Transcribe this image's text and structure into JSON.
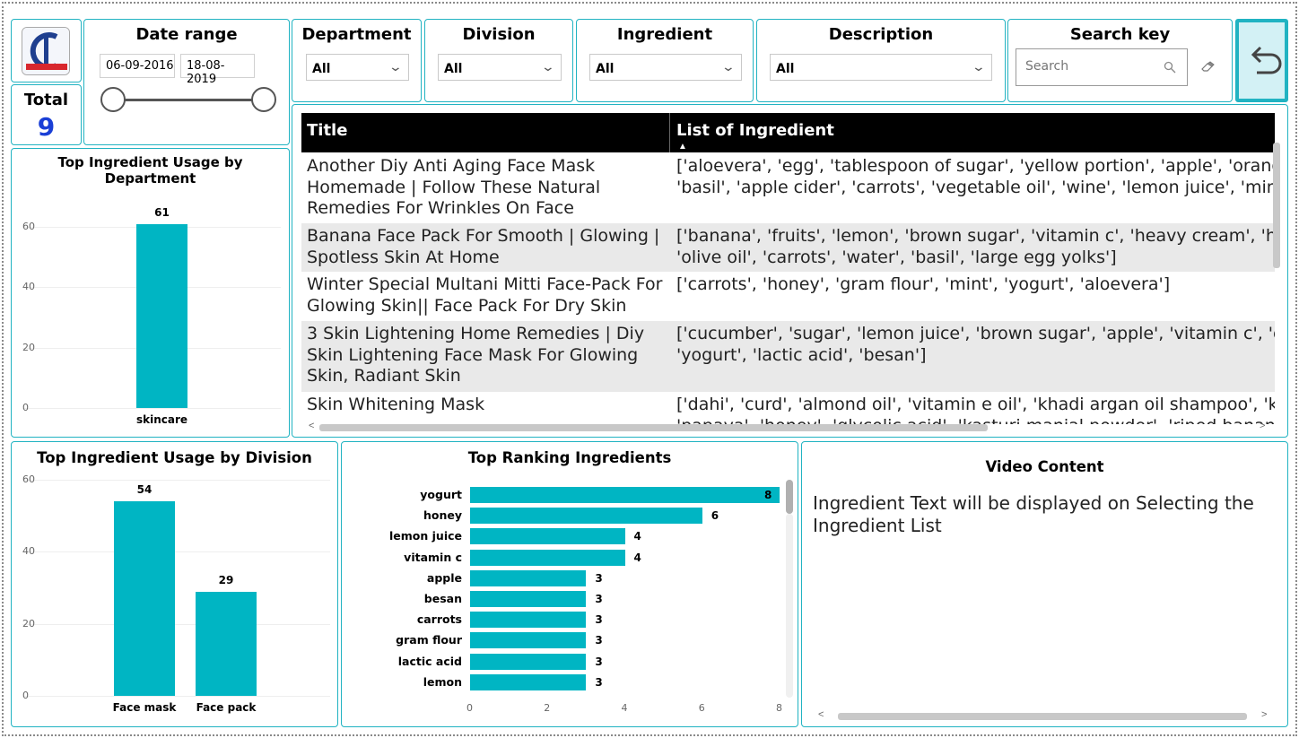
{
  "total": {
    "label": "Total",
    "value": "9"
  },
  "date_range": {
    "label": "Date range",
    "start": "06-09-2016",
    "end": "18-08-2019"
  },
  "filters": [
    {
      "label": "Department",
      "value": "All"
    },
    {
      "label": "Division",
      "value": "All"
    },
    {
      "label": "Ingredient",
      "value": "All"
    },
    {
      "label": "Description",
      "value": "All"
    }
  ],
  "search": {
    "label": "Search key",
    "placeholder": "Search"
  },
  "table": {
    "headers": [
      "Title",
      "List of Ingredient"
    ],
    "rows": [
      {
        "title": "Another Diy Anti Aging Face Mask Homemade | Follow These Natural Remedies For Wrinkles On Face",
        "ingredients": "['aloevera', 'egg', 'tablespoon of sugar', 'yellow portion', 'apple', 'orange', 'oran\n'basil', 'apple cider', 'carrots', 'vegetable oil', 'wine', 'lemon juice', 'mint', 'cranb"
      },
      {
        "title": "Banana Face Pack For Smooth | Glowing | Spotless Skin At Home",
        "ingredients": "['banana', 'fruits', 'lemon', 'brown sugar', 'vitamin c', 'heavy cream', 'honey', 'r\n'olive oil', 'carrots', 'water', 'basil', 'large egg yolks']"
      },
      {
        "title": "Winter Special Multani Mitti Face-Pack For Glowing Skin|| Face Pack For Dry Skin",
        "ingredients": "['carrots', 'honey', 'gram flour', 'mint', 'yogurt', 'aloevera']"
      },
      {
        "title": "3 Skin Lightening Home Remedies | Diy Skin Lightening Face Mask For Glowing Skin, Radiant Skin",
        "ingredients": "['cucumber', 'sugar', 'lemon juice', 'brown sugar', 'apple', 'vitamin c', 'cranberr\n'yogurt', 'lactic acid', 'besan']"
      },
      {
        "title": "Skin Whitening Mask",
        "ingredients": "['dahi', 'curd', 'almond oil', 'vitamin e oil', 'khadi argan oil shampoo', 'khadi coc\n'papaya', 'honey', 'glycolic acid', 'kasturi manjal powder', 'riped banana', 'rice f"
      }
    ]
  },
  "video": {
    "title": "Video Content",
    "text": "Ingredient Text will be displayed on Selecting the Ingredient List"
  },
  "colors": {
    "accent": "#21b3c2",
    "bar": "#00b5c3",
    "total": "#1a3fd6"
  },
  "chart_data": [
    {
      "type": "bar",
      "title": "Top Ingredient Usage by Department",
      "categories": [
        "skincare"
      ],
      "values": [
        61
      ],
      "yticks": [
        0,
        20,
        40,
        60
      ],
      "ylim": [
        0,
        68
      ]
    },
    {
      "type": "bar",
      "title": "Top Ingredient Usage by Division",
      "categories": [
        "Face mask",
        "Face pack"
      ],
      "values": [
        54,
        29
      ],
      "yticks": [
        0,
        20,
        40,
        60
      ],
      "ylim": [
        0,
        60
      ]
    },
    {
      "type": "bar",
      "orientation": "horizontal",
      "title": "Top Ranking Ingredients",
      "categories": [
        "yogurt",
        "honey",
        "lemon juice",
        "vitamin c",
        "apple",
        "besan",
        "carrots",
        "gram flour",
        "lactic acid",
        "lemon"
      ],
      "values": [
        8,
        6,
        4,
        4,
        3,
        3,
        3,
        3,
        3,
        3
      ],
      "xticks": [
        0,
        2,
        4,
        6,
        8
      ],
      "xlim": [
        0,
        8
      ]
    }
  ]
}
